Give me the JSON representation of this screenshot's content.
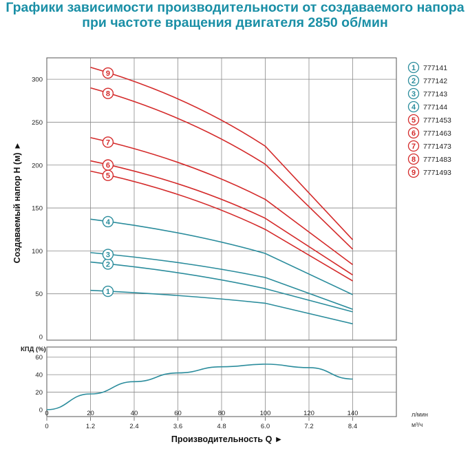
{
  "title_line1": "Графики зависимости производительности от создаваемого напора",
  "title_line2": "при частоте вращения двигателя 2850 об/мин",
  "colors": {
    "blue": "#2a8c9c",
    "red": "#d42a2a",
    "title": "#1a8fa6"
  },
  "chart_data": [
    {
      "type": "line",
      "ylabel": "Создаваемый напор Н (м) ►",
      "xlim": [
        0,
        160
      ],
      "ylim": [
        0,
        325
      ],
      "yticks": [
        0,
        50,
        100,
        150,
        200,
        250,
        300
      ],
      "series": [
        {
          "name": "777141",
          "num": "1",
          "color": "blue",
          "x": [
            20,
            100,
            140
          ],
          "y": [
            54,
            39,
            15
          ],
          "label_x": 28
        },
        {
          "name": "777142",
          "num": "2",
          "color": "blue",
          "x": [
            20,
            100,
            140
          ],
          "y": [
            87,
            56,
            29
          ],
          "label_x": 28
        },
        {
          "name": "777143",
          "num": "3",
          "color": "blue",
          "x": [
            20,
            100,
            140
          ],
          "y": [
            98,
            69,
            32
          ],
          "label_x": 28
        },
        {
          "name": "777144",
          "num": "4",
          "color": "blue",
          "x": [
            20,
            100,
            140
          ],
          "y": [
            137,
            97,
            49
          ],
          "label_x": 28
        },
        {
          "name": "7771453",
          "num": "5",
          "color": "red",
          "x": [
            20,
            100,
            140
          ],
          "y": [
            193,
            125,
            65
          ],
          "label_x": 28
        },
        {
          "name": "7771463",
          "num": "6",
          "color": "red",
          "x": [
            20,
            100,
            140
          ],
          "y": [
            205,
            138,
            72
          ],
          "label_x": 28
        },
        {
          "name": "7771473",
          "num": "7",
          "color": "red",
          "x": [
            20,
            100,
            140
          ],
          "y": [
            232,
            160,
            84
          ],
          "label_x": 28
        },
        {
          "name": "7771483",
          "num": "8",
          "color": "red",
          "x": [
            20,
            100,
            140
          ],
          "y": [
            290,
            201,
            102
          ],
          "label_x": 28
        },
        {
          "name": "7771493",
          "num": "9",
          "color": "red",
          "x": [
            20,
            100,
            140
          ],
          "y": [
            314,
            222,
            113
          ],
          "label_x": 28
        }
      ]
    },
    {
      "type": "line",
      "ylabel": "КПД (%)",
      "xlabel": "Производительность Q ►",
      "xlim": [
        0,
        160
      ],
      "ylim": [
        0,
        70
      ],
      "yticks": [
        0,
        20,
        40,
        60
      ],
      "x_ticks_lpm": [
        "0",
        "20",
        "40",
        "60",
        "80",
        "100",
        "120",
        "140"
      ],
      "x_ticks_m3h": [
        "0",
        "1.2",
        "2.4",
        "3.6",
        "4.8",
        "6.0",
        "7.2",
        "8.4"
      ],
      "unit_lpm": "л/мин",
      "unit_m3h": "м³/ч",
      "series": [
        {
          "x": [
            0,
            20,
            40,
            60,
            80,
            100,
            120,
            140
          ],
          "y": [
            0,
            18,
            32,
            42,
            49,
            52,
            48,
            35
          ]
        }
      ]
    }
  ]
}
